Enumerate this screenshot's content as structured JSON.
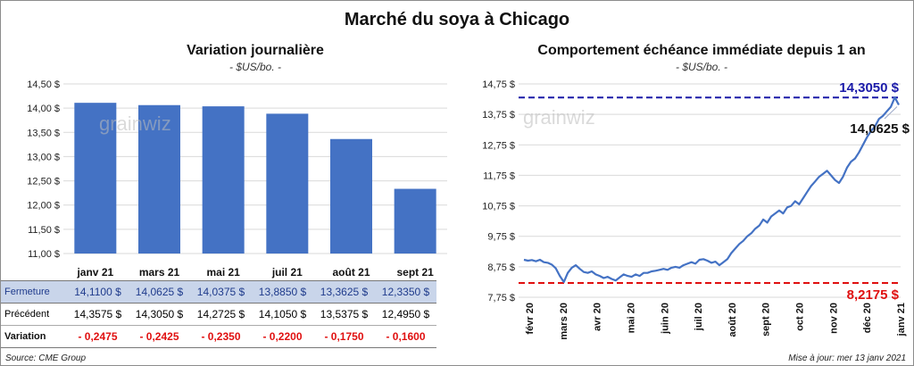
{
  "title": "Marché du soya à Chicago",
  "source": "Source: CME Group",
  "update": "Mise à jour: mer 13 janv 2021",
  "watermark": "grainwiz",
  "colors": {
    "bar": "#4472c4",
    "line": "#4472c4",
    "high": "#1a1aa8",
    "low": "#e01010",
    "variation": "#e01010"
  },
  "chart_data": [
    {
      "type": "bar",
      "title": "Variation journalière",
      "unit": "- $US/bo. -",
      "categories": [
        "janv 21",
        "mars 21",
        "mai 21",
        "juil 21",
        "août 21",
        "sept 21"
      ],
      "values": [
        14.11,
        14.0625,
        14.0375,
        13.885,
        13.3625,
        12.335
      ],
      "ylim": [
        11.0,
        14.5
      ],
      "yticks": [
        11.0,
        11.5,
        12.0,
        12.5,
        13.0,
        13.5,
        14.0,
        14.5
      ],
      "ytick_labels": [
        "11,00 $",
        "11,50 $",
        "12,00 $",
        "12,50 $",
        "13,00 $",
        "13,50 $",
        "14,00 $",
        "14,50 $"
      ],
      "table": {
        "rows": [
          {
            "label": "Fermeture",
            "cells": [
              "14,1100  $",
              "14,0625  $",
              "14,0375  $",
              "13,8850  $",
              "13,3625  $",
              "12,3350  $"
            ]
          },
          {
            "label": "Précédent",
            "cells": [
              "14,3575  $",
              "14,3050  $",
              "14,2725  $",
              "14,1050  $",
              "13,5375  $",
              "12,4950  $"
            ]
          },
          {
            "label": "Variation",
            "cells": [
              "- 0,2475",
              "- 0,2425",
              "- 0,2350",
              "- 0,2200",
              "- 0,1750",
              "- 0,1600"
            ]
          }
        ]
      }
    },
    {
      "type": "line",
      "title": "Comportement  échéance immédiate depuis 1 an",
      "unit": "- $US/bo. -",
      "ylim": [
        7.75,
        14.75
      ],
      "yticks": [
        7.75,
        8.75,
        9.75,
        10.75,
        11.75,
        12.75,
        13.75,
        14.75
      ],
      "ytick_labels": [
        "7,75 $",
        "8,75 $",
        "9,75 $",
        "10,75 $",
        "11,75 $",
        "12,75 $",
        "13,75 $",
        "14,75 $"
      ],
      "xticks": [
        "févr 20",
        "mars 20",
        "avr 20",
        "mai 20",
        "juin 20",
        "juil 20",
        "août 20",
        "sept 20",
        "oct 20",
        "nov 20",
        "déc 20",
        "janv 21"
      ],
      "series": [
        {
          "values": [
            8.98,
            8.95,
            8.97,
            8.93,
            8.98,
            8.9,
            8.88,
            8.82,
            8.7,
            8.45,
            8.25,
            8.55,
            8.72,
            8.8,
            8.68,
            8.58,
            8.55,
            8.6,
            8.5,
            8.45,
            8.38,
            8.42,
            8.35,
            8.3,
            8.4,
            8.5,
            8.45,
            8.42,
            8.5,
            8.45,
            8.55,
            8.55,
            8.6,
            8.62,
            8.65,
            8.68,
            8.65,
            8.72,
            8.75,
            8.72,
            8.8,
            8.85,
            8.9,
            8.85,
            8.98,
            9.0,
            8.95,
            8.88,
            8.92,
            8.8,
            8.9,
            9.0,
            9.2,
            9.35,
            9.5,
            9.6,
            9.75,
            9.85,
            10.0,
            10.1,
            10.3,
            10.2,
            10.4,
            10.5,
            10.6,
            10.5,
            10.7,
            10.75,
            10.9,
            10.8,
            11.0,
            11.2,
            11.4,
            11.55,
            11.7,
            11.8,
            11.9,
            11.75,
            11.6,
            11.5,
            11.7,
            12.0,
            12.2,
            12.3,
            12.5,
            12.75,
            13.0,
            13.2,
            13.35,
            13.6,
            13.7,
            13.85,
            14.0,
            14.305,
            14.0625
          ]
        }
      ],
      "high": {
        "value": 14.305,
        "label": "14,3050  $"
      },
      "low": {
        "value": 8.2175,
        "label": "8,2175  $"
      },
      "last_label": "14,0625 $"
    }
  ]
}
